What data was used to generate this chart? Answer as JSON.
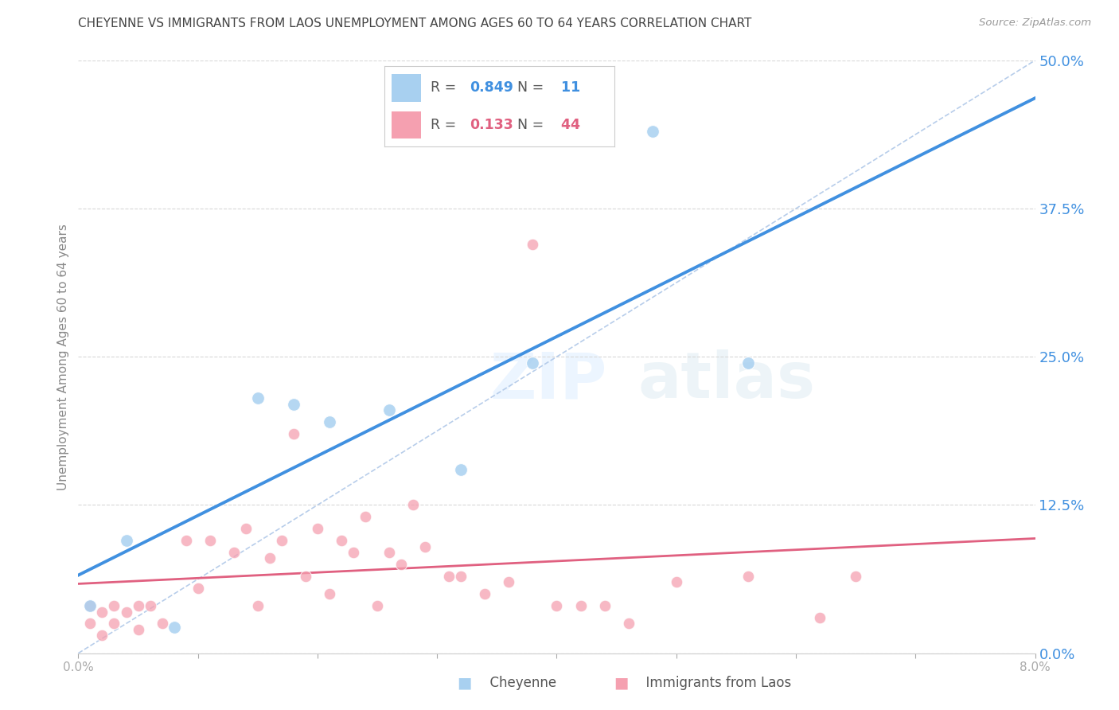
{
  "title": "CHEYENNE VS IMMIGRANTS FROM LAOS UNEMPLOYMENT AMONG AGES 60 TO 64 YEARS CORRELATION CHART",
  "source": "Source: ZipAtlas.com",
  "ylabel": "Unemployment Among Ages 60 to 64 years",
  "y_ticks_right": [
    0.0,
    0.125,
    0.25,
    0.375,
    0.5
  ],
  "cheyenne_R": 0.849,
  "cheyenne_N": 11,
  "laos_R": 0.133,
  "laos_N": 44,
  "cheyenne_color": "#a8d0f0",
  "laos_color": "#f5a0b0",
  "cheyenne_line_color": "#4090e0",
  "laos_line_color": "#e06080",
  "ref_line_color": "#b0c8e8",
  "watermark_zip": "ZIP",
  "watermark_atlas": "atlas",
  "cheyenne_x": [
    0.001,
    0.004,
    0.008,
    0.015,
    0.018,
    0.021,
    0.026,
    0.032,
    0.038,
    0.048,
    0.056
  ],
  "cheyenne_y": [
    0.04,
    0.095,
    0.022,
    0.215,
    0.21,
    0.195,
    0.205,
    0.155,
    0.245,
    0.44,
    0.245
  ],
  "laos_x": [
    0.001,
    0.001,
    0.002,
    0.002,
    0.003,
    0.003,
    0.004,
    0.005,
    0.005,
    0.006,
    0.007,
    0.009,
    0.01,
    0.011,
    0.013,
    0.014,
    0.015,
    0.016,
    0.017,
    0.018,
    0.019,
    0.02,
    0.021,
    0.022,
    0.023,
    0.024,
    0.025,
    0.026,
    0.027,
    0.028,
    0.029,
    0.031,
    0.032,
    0.034,
    0.036,
    0.038,
    0.04,
    0.042,
    0.044,
    0.046,
    0.05,
    0.056,
    0.062,
    0.065
  ],
  "laos_y": [
    0.04,
    0.025,
    0.035,
    0.015,
    0.04,
    0.025,
    0.035,
    0.04,
    0.02,
    0.04,
    0.025,
    0.095,
    0.055,
    0.095,
    0.085,
    0.105,
    0.04,
    0.08,
    0.095,
    0.185,
    0.065,
    0.105,
    0.05,
    0.095,
    0.085,
    0.115,
    0.04,
    0.085,
    0.075,
    0.125,
    0.09,
    0.065,
    0.065,
    0.05,
    0.06,
    0.345,
    0.04,
    0.04,
    0.04,
    0.025,
    0.06,
    0.065,
    0.03,
    0.065
  ],
  "xmin": 0.0,
  "xmax": 0.08,
  "ymin": 0.0,
  "ymax": 0.5,
  "background_color": "#ffffff",
  "title_color": "#444444",
  "right_axis_color": "#4090e0",
  "grid_color": "#d8d8d8",
  "bottom_legend_cheyenne": "Cheyenne",
  "bottom_legend_laos": "Immigrants from Laos"
}
